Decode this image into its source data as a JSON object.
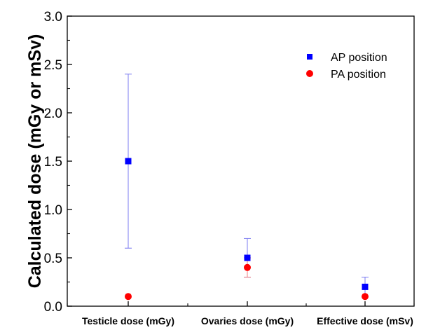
{
  "chart_data": {
    "type": "scatter",
    "title": "",
    "xlabel": "",
    "ylabel": "Calculated dose (mGy or mSv)",
    "categories": [
      "Testicle dose (mGy)",
      "Ovaries dose (mGy)",
      "Effective dose (mSv)"
    ],
    "ylim": [
      0.0,
      3.0
    ],
    "yticks": [
      "0.0",
      "0.5",
      "1.0",
      "1.5",
      "2.0",
      "2.5",
      "3.0"
    ],
    "grid": false,
    "legend_position": "top-right",
    "series": [
      {
        "name": "AP position",
        "marker": "square",
        "color": "#0000ff",
        "values": [
          1.5,
          0.5,
          0.2
        ],
        "error_low": [
          0.6,
          0.3,
          0.1
        ],
        "error_high": [
          2.4,
          0.7,
          0.3
        ]
      },
      {
        "name": "PA position",
        "marker": "circle",
        "color": "#ff0000",
        "values": [
          0.1,
          0.4,
          0.1
        ],
        "error_low": [
          null,
          0.3,
          null
        ],
        "error_high": [
          null,
          0.5,
          null
        ]
      }
    ]
  }
}
